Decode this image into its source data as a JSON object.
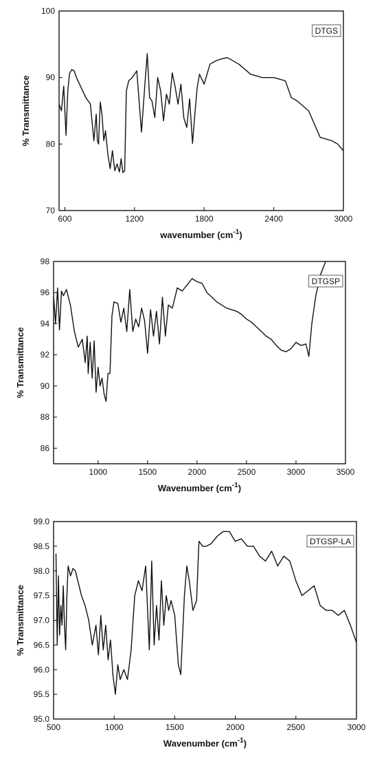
{
  "chart_data": [
    {
      "type": "line",
      "xlabel": "wavenumber (cm",
      "xlabel_sup": "-1",
      "xlabel_tail": ")",
      "ylabel": "% Transmittance",
      "xlim": [
        550,
        3000
      ],
      "ylim": [
        70,
        100
      ],
      "xticks": [
        600,
        1200,
        1800,
        2400,
        3000
      ],
      "yticks": [
        70,
        80,
        90,
        100
      ],
      "legend": "DTGS",
      "legend_position": "top-right",
      "grid": false,
      "series": [
        {
          "x": [
            550,
            570,
            590,
            610,
            625,
            640,
            660,
            680,
            700,
            740,
            780,
            820,
            850,
            870,
            880,
            890,
            905,
            920,
            935,
            950,
            970,
            990,
            1010,
            1030,
            1050,
            1070,
            1085,
            1100,
            1115,
            1130,
            1150,
            1180,
            1220,
            1260,
            1290,
            1310,
            1330,
            1350,
            1375,
            1400,
            1425,
            1450,
            1475,
            1500,
            1525,
            1550,
            1575,
            1600,
            1625,
            1650,
            1675,
            1700,
            1720,
            1740,
            1760,
            1800,
            1850,
            1900,
            1950,
            2000,
            2100,
            2200,
            2300,
            2400,
            2500,
            2550,
            2600,
            2700,
            2800,
            2900,
            2950,
            3000
          ],
          "y": [
            86,
            85,
            88.7,
            81.3,
            88,
            90.6,
            91.2,
            91,
            90,
            88.5,
            87,
            86,
            80.5,
            84.5,
            80.5,
            80,
            86.3,
            84.5,
            80.5,
            82,
            78.5,
            76.3,
            79,
            76,
            77,
            75.8,
            77.8,
            75.7,
            76,
            88,
            89.5,
            90,
            91,
            81.8,
            89,
            93.6,
            87,
            86.5,
            84,
            90,
            88,
            83.5,
            87.5,
            86,
            90.7,
            88.6,
            86,
            89,
            83.9,
            82.5,
            86.8,
            80.1,
            84.5,
            88.5,
            90.5,
            89,
            92,
            92.5,
            92.8,
            93,
            92,
            90.5,
            90,
            90,
            89.5,
            87,
            86.5,
            85,
            81,
            80.5,
            80,
            79
          ]
        }
      ]
    },
    {
      "type": "line",
      "xlabel": "Wavenumber (cm",
      "xlabel_sup": "-1",
      "xlabel_tail": ")",
      "ylabel": "% Transmittance",
      "xlim": [
        550,
        3500
      ],
      "ylim": [
        85,
        98
      ],
      "xticks": [
        1000,
        1500,
        2000,
        2500,
        3000,
        3500
      ],
      "yticks": [
        86,
        88,
        90,
        92,
        94,
        96,
        98
      ],
      "legend": "DTGSP",
      "legend_position": "top-right",
      "grid": false,
      "series": [
        {
          "x": [
            550,
            570,
            590,
            610,
            630,
            650,
            680,
            720,
            760,
            800,
            840,
            870,
            890,
            900,
            920,
            940,
            960,
            980,
            1000,
            1020,
            1040,
            1060,
            1080,
            1100,
            1120,
            1140,
            1160,
            1200,
            1230,
            1260,
            1290,
            1320,
            1350,
            1380,
            1410,
            1440,
            1470,
            1500,
            1530,
            1560,
            1590,
            1620,
            1650,
            1680,
            1710,
            1750,
            1800,
            1850,
            1900,
            1950,
            2000,
            2050,
            2100,
            2150,
            2200,
            2250,
            2300,
            2350,
            2400,
            2450,
            2500,
            2550,
            2600,
            2650,
            2700,
            2750,
            2800,
            2850,
            2900,
            2950,
            3000,
            3050,
            3100,
            3130,
            3160,
            3200,
            3250,
            3300
          ],
          "y": [
            95.8,
            94,
            96.3,
            93.6,
            96.1,
            95.8,
            96.2,
            95.2,
            93.5,
            92.5,
            93,
            91.5,
            93.2,
            90.8,
            92.8,
            90.5,
            92.9,
            89.6,
            91.2,
            90,
            90.5,
            89.5,
            89,
            90.8,
            90.8,
            94.5,
            95.4,
            95.3,
            94.1,
            95,
            93.5,
            96.2,
            93.5,
            94.3,
            93.8,
            95,
            94.2,
            92.1,
            94.9,
            93.2,
            94.8,
            92.7,
            95.7,
            93.2,
            95.2,
            95,
            96.3,
            96.1,
            96.5,
            96.9,
            96.7,
            96.6,
            96,
            95.7,
            95.4,
            95.2,
            95,
            94.9,
            94.8,
            94.6,
            94.3,
            94.1,
            93.8,
            93.5,
            93.2,
            93,
            92.6,
            92.3,
            92.2,
            92.4,
            92.8,
            92.6,
            92.7,
            91.9,
            94,
            95.8,
            97.2,
            98
          ]
        }
      ]
    },
    {
      "type": "line",
      "xlabel": "Wavenumber (cm",
      "xlabel_sup": "-1",
      "xlabel_tail": ")",
      "ylabel": "% Transmittance",
      "xlim": [
        500,
        3000
      ],
      "ylim": [
        95.0,
        99.0
      ],
      "xticks": [
        500,
        1000,
        1500,
        2000,
        2500,
        3000
      ],
      "yticks": [
        "95.0",
        "95.5",
        "96.0",
        "96.5",
        "97.0",
        "97.5",
        "98.0",
        "98.5",
        "99.0"
      ],
      "legend": "DTGSP-LA",
      "legend_position": "top-right",
      "grid": false,
      "series": [
        {
          "x": [
            520,
            530,
            540,
            550,
            560,
            570,
            580,
            590,
            600,
            610,
            620,
            640,
            660,
            680,
            700,
            730,
            760,
            790,
            820,
            850,
            870,
            890,
            910,
            930,
            950,
            970,
            990,
            1010,
            1030,
            1050,
            1080,
            1110,
            1140,
            1170,
            1200,
            1230,
            1260,
            1290,
            1310,
            1330,
            1350,
            1370,
            1390,
            1410,
            1430,
            1450,
            1470,
            1500,
            1530,
            1550,
            1580,
            1600,
            1620,
            1650,
            1680,
            1700,
            1730,
            1760,
            1800,
            1850,
            1900,
            1950,
            2000,
            2050,
            2100,
            2150,
            2200,
            2250,
            2300,
            2350,
            2400,
            2450,
            2500,
            2550,
            2600,
            2650,
            2700,
            2750,
            2800,
            2850,
            2900,
            2950,
            3000
          ],
          "y": [
            98.35,
            96.5,
            97.9,
            96.7,
            97.3,
            96.9,
            97.7,
            96.9,
            96.4,
            97.5,
            98.1,
            97.9,
            98.05,
            98.0,
            97.8,
            97.5,
            97.3,
            97.0,
            96.5,
            96.9,
            96.3,
            97.1,
            96.4,
            96.9,
            96.2,
            96.6,
            95.9,
            95.5,
            96.1,
            95.8,
            96.0,
            95.8,
            96.4,
            97.5,
            97.8,
            97.6,
            98.1,
            96.4,
            98.2,
            96.5,
            97.3,
            96.6,
            97.8,
            96.9,
            97.5,
            97.2,
            97.4,
            97.1,
            96.1,
            95.9,
            97.5,
            98.1,
            97.8,
            97.2,
            97.4,
            98.6,
            98.5,
            98.5,
            98.55,
            98.7,
            98.8,
            98.8,
            98.6,
            98.65,
            98.5,
            98.5,
            98.3,
            98.2,
            98.4,
            98.1,
            98.3,
            98.2,
            97.8,
            97.5,
            97.6,
            97.7,
            97.3,
            97.2,
            97.2,
            97.1,
            97.2,
            96.9,
            96.55
          ]
        }
      ]
    }
  ]
}
